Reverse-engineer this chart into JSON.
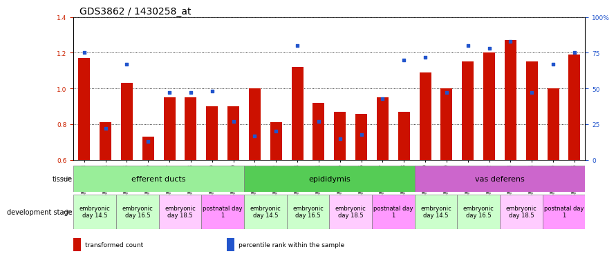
{
  "title": "GDS3862 / 1430258_at",
  "samples": [
    "GSM560923",
    "GSM560924",
    "GSM560925",
    "GSM560926",
    "GSM560927",
    "GSM560928",
    "GSM560929",
    "GSM560930",
    "GSM560931",
    "GSM560932",
    "GSM560933",
    "GSM560934",
    "GSM560935",
    "GSM560936",
    "GSM560937",
    "GSM560938",
    "GSM560939",
    "GSM560940",
    "GSM560941",
    "GSM560942",
    "GSM560943",
    "GSM560944",
    "GSM560945",
    "GSM560946"
  ],
  "red_values": [
    1.17,
    0.81,
    1.03,
    0.73,
    0.95,
    0.95,
    0.9,
    0.9,
    1.0,
    0.81,
    1.12,
    0.92,
    0.87,
    0.86,
    0.95,
    0.87,
    1.09,
    1.0,
    1.15,
    1.2,
    1.27,
    1.15,
    1.0,
    1.19
  ],
  "blue_values": [
    75,
    22,
    67,
    13,
    47,
    47,
    48,
    27,
    17,
    20,
    80,
    27,
    15,
    18,
    43,
    70,
    72,
    47,
    80,
    78,
    83,
    47,
    67,
    75
  ],
  "ylim_left": [
    0.6,
    1.4
  ],
  "ylim_right": [
    0,
    100
  ],
  "yticks_left": [
    0.6,
    0.8,
    1.0,
    1.2,
    1.4
  ],
  "yticks_right": [
    0,
    25,
    50,
    75,
    100
  ],
  "ytick_labels_right": [
    "0",
    "25",
    "50",
    "75",
    "100%"
  ],
  "bar_color": "#cc1100",
  "dot_color": "#2255cc",
  "bar_bottom": 0.6,
  "tissues": [
    {
      "label": "efferent ducts",
      "start": 0,
      "end": 8,
      "color": "#99ee99"
    },
    {
      "label": "epididymis",
      "start": 8,
      "end": 16,
      "color": "#55cc55"
    },
    {
      "label": "vas deferens",
      "start": 16,
      "end": 24,
      "color": "#cc66cc"
    }
  ],
  "dev_stages": [
    {
      "label": "embryonic\nday 14.5",
      "start": 0,
      "end": 2,
      "color": "#ccffcc"
    },
    {
      "label": "embryonic\nday 16.5",
      "start": 2,
      "end": 4,
      "color": "#ccffcc"
    },
    {
      "label": "embryonic\nday 18.5",
      "start": 4,
      "end": 6,
      "color": "#ffccff"
    },
    {
      "label": "postnatal day\n1",
      "start": 6,
      "end": 8,
      "color": "#ff99ff"
    },
    {
      "label": "embryonic\nday 14.5",
      "start": 8,
      "end": 10,
      "color": "#ccffcc"
    },
    {
      "label": "embryonic\nday 16.5",
      "start": 10,
      "end": 12,
      "color": "#ccffcc"
    },
    {
      "label": "embryonic\nday 18.5",
      "start": 12,
      "end": 14,
      "color": "#ffccff"
    },
    {
      "label": "postnatal day\n1",
      "start": 14,
      "end": 16,
      "color": "#ff99ff"
    },
    {
      "label": "embryonic\nday 14.5",
      "start": 16,
      "end": 18,
      "color": "#ccffcc"
    },
    {
      "label": "embryonic\nday 16.5",
      "start": 18,
      "end": 20,
      "color": "#ccffcc"
    },
    {
      "label": "embryonic\nday 18.5",
      "start": 20,
      "end": 22,
      "color": "#ffccff"
    },
    {
      "label": "postnatal day\n1",
      "start": 22,
      "end": 24,
      "color": "#ff99ff"
    }
  ],
  "legend_items": [
    {
      "color": "#cc1100",
      "label": "transformed count"
    },
    {
      "color": "#2255cc",
      "label": "percentile rank within the sample"
    }
  ],
  "title_fontsize": 10,
  "tick_fontsize": 6.5,
  "label_fontsize": 7,
  "tissue_fontsize": 8,
  "devstage_fontsize": 6,
  "bar_width": 0.55
}
